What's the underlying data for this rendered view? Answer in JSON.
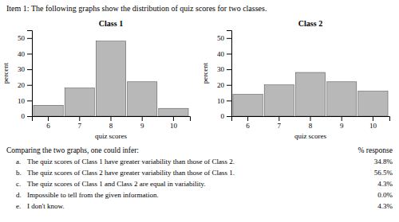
{
  "title": "Item 1: The following graphs show the distribution of quiz scores for two classes.",
  "chart_data": [
    {
      "type": "bar",
      "title": "Class 1",
      "xlabel": "quiz scores",
      "ylabel": "percent",
      "categories": [
        6,
        7,
        8,
        9,
        10
      ],
      "values": [
        7,
        18,
        48,
        22,
        5
      ],
      "color": "#b8b8b8",
      "ylim": [
        0,
        55
      ],
      "yticks": [
        0,
        10,
        20,
        30,
        40,
        50
      ]
    },
    {
      "type": "bar",
      "title": "Class 2",
      "xlabel": "quiz scores",
      "ylabel": "percent",
      "categories": [
        6,
        7,
        8,
        9,
        10
      ],
      "values": [
        14,
        20,
        28,
        22,
        16
      ],
      "color": "#b8b8b8",
      "ylim": [
        0,
        55
      ],
      "yticks": [
        0,
        10,
        20,
        30,
        40,
        50
      ]
    }
  ],
  "annotations": {
    "heading": "Comparing the two graphs, one could infer:",
    "value_heading": "% response",
    "items": [
      {
        "letter": "a.",
        "text": "The quiz scores of Class 1 have greater variability than those of Class 2.",
        "value": 34.8,
        "label": "34.8%"
      },
      {
        "letter": "b.",
        "text": "The quiz scores of Class 2 have greater variability than those of Class 1.",
        "value": 56.5,
        "label": "56.5%"
      },
      {
        "letter": "c.",
        "text": "The quiz scores of Class 1 and Class 2 are equal in variability.",
        "value": 4.3,
        "label": "4.3%"
      },
      {
        "letter": "d.",
        "text": "Impossible to tell from the given information.",
        "value": 0.0,
        "label": "0.0%"
      },
      {
        "letter": "e.",
        "text": "I don't know.",
        "value": 4.3,
        "label": "4.3%"
      }
    ]
  }
}
